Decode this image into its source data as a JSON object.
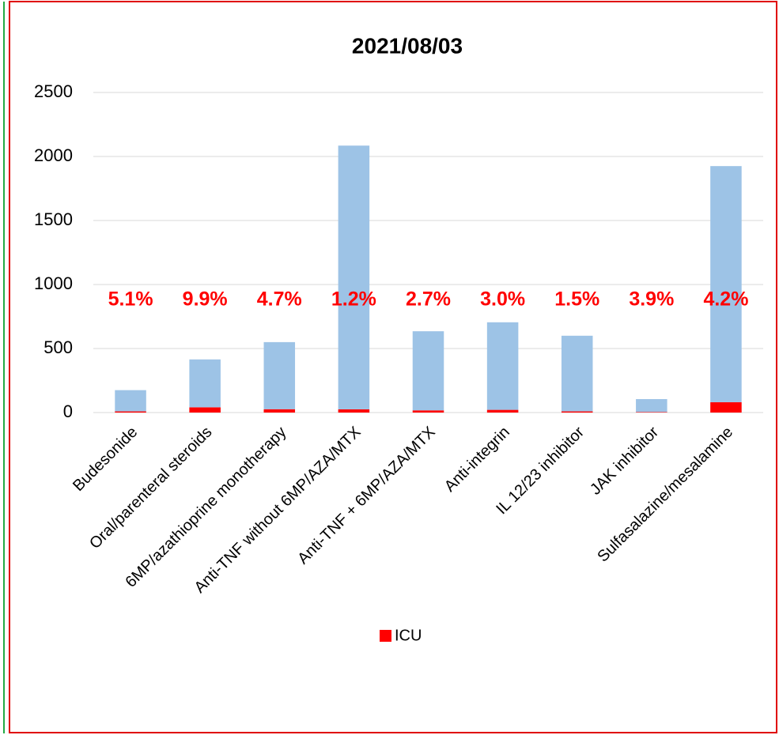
{
  "chart_data": {
    "type": "stacked_bar",
    "title": "2021/08/03",
    "categories": [
      "Budesonide",
      "Oral/parenteral steroids",
      "6MP/azathioprine monotherapy",
      "Anti-TNF without 6MP/AZA/MTX",
      "Anti-TNF + 6MP/AZA/MTX",
      "Anti-integrin",
      "IL 12/23 inhibitor",
      "JAK inhibitor",
      "Sulfasalazine/mesalamine"
    ],
    "series": [
      {
        "name": "ICU",
        "color": "#ff0000",
        "values": [
          9,
          41,
          26,
          25,
          17,
          21,
          9,
          4,
          81
        ]
      },
      {
        "color": "#9dc3e6",
        "values": [
          166,
          374,
          524,
          2060,
          618,
          684,
          591,
          101,
          1844
        ]
      }
    ],
    "annotations": [
      "5.1%",
      "9.9%",
      "4.7%",
      "1.2%",
      "2.7%",
      "3.0%",
      "1.5%",
      "3.9%",
      "4.2%"
    ],
    "ylim": [
      0,
      2500
    ],
    "yticks": [
      0,
      500,
      1000,
      1500,
      2000,
      2500
    ],
    "grid": true,
    "legend": "bottom"
  }
}
